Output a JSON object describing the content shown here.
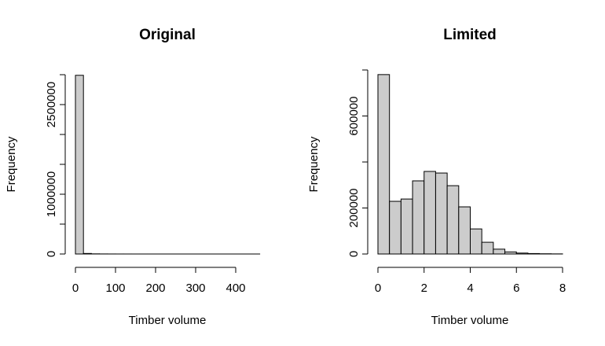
{
  "chart_data": [
    {
      "type": "histogram",
      "title": "Original",
      "xlabel": "Timber volume",
      "ylabel": "Frequency",
      "bins": [
        0,
        20,
        40,
        60,
        80,
        100,
        120,
        140,
        160,
        180,
        200,
        220,
        240,
        260,
        280,
        300,
        320,
        340,
        360,
        380,
        400,
        420,
        440,
        460
      ],
      "values": [
        2990000,
        9000,
        2500,
        1200,
        700,
        400,
        250,
        150,
        100,
        70,
        50,
        40,
        30,
        20,
        15,
        10,
        8,
        6,
        5,
        4,
        3,
        2,
        1
      ],
      "color": "#cccccc",
      "xlim": [
        0,
        400
      ],
      "xticks": [
        0,
        100,
        200,
        300,
        400
      ],
      "ylim": [
        0,
        3000000
      ],
      "yticks": [
        0,
        1000000,
        2500000
      ],
      "yticks_unlabeled": [
        500000,
        1500000,
        2000000,
        3000000
      ]
    },
    {
      "type": "histogram",
      "title": "Limited",
      "xlabel": "Timber volume",
      "ylabel": "Frequency",
      "bins": [
        0,
        0.5,
        1,
        1.5,
        2,
        2.5,
        3,
        3.5,
        4,
        4.5,
        5,
        5.5,
        6,
        6.5,
        7,
        7.5,
        8
      ],
      "values": [
        780000,
        229000,
        239000,
        318000,
        359000,
        352000,
        297000,
        205000,
        109000,
        51000,
        21000,
        9000,
        4000,
        2000,
        1000,
        500
      ],
      "color": "#cccccc",
      "xlim": [
        0,
        8
      ],
      "xticks": [
        0,
        2,
        4,
        6,
        8
      ],
      "ylim": [
        0,
        800000
      ],
      "yticks": [
        0,
        200000,
        600000
      ],
      "yticks_unlabeled": [
        400000,
        800000
      ]
    }
  ]
}
